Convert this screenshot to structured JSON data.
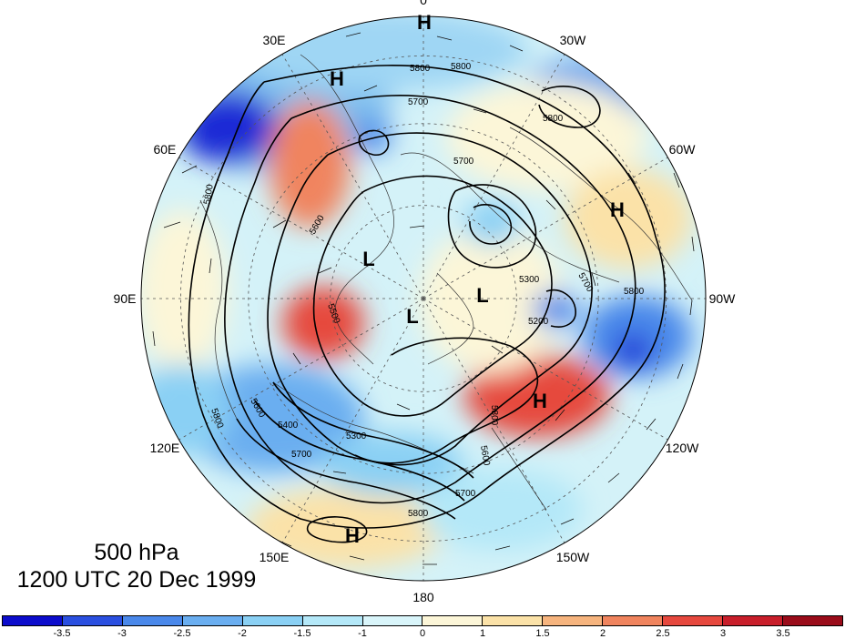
{
  "caption": {
    "level": "500 hPa",
    "time": "1200 UTC 20 Dec 1999"
  },
  "longitude_labels": [
    {
      "lon": 0,
      "label": "0"
    },
    {
      "lon": 30,
      "label": "30W"
    },
    {
      "lon": 60,
      "label": "60W"
    },
    {
      "lon": 90,
      "label": "90W"
    },
    {
      "lon": 120,
      "label": "120W"
    },
    {
      "lon": 150,
      "label": "150W"
    },
    {
      "lon": 180,
      "label": "180"
    },
    {
      "lon": 210,
      "label": "150E"
    },
    {
      "lon": 240,
      "label": "120E"
    },
    {
      "lon": 270,
      "label": "90E"
    },
    {
      "lon": 300,
      "label": "60E"
    },
    {
      "lon": 330,
      "label": "30E"
    }
  ],
  "pressure_centers": [
    {
      "type": "H",
      "label": "H"
    },
    {
      "type": "H",
      "label": "H"
    },
    {
      "type": "H",
      "label": "H"
    },
    {
      "type": "H",
      "label": "H"
    },
    {
      "type": "H",
      "label": "H"
    },
    {
      "type": "L",
      "label": "L"
    },
    {
      "type": "L",
      "label": "L"
    },
    {
      "type": "L",
      "label": "L"
    }
  ],
  "contour_labels": [
    "5800",
    "5800",
    "5800",
    "5800",
    "5800",
    "5800",
    "5800",
    "5800",
    "5700",
    "5700",
    "5700",
    "5700",
    "5700",
    "5600",
    "5600",
    "5600",
    "5500",
    "5400",
    "5300",
    "5300",
    "5200"
  ],
  "colorbar": {
    "colors": [
      "#0c0ccc",
      "#2a4fe0",
      "#4a88ea",
      "#6aaef0",
      "#8ad0f4",
      "#b4e8f8",
      "#d9f5fa",
      "#fcf6d8",
      "#fbe2a8",
      "#f6b47e",
      "#f0845e",
      "#e6483e",
      "#c81e2a",
      "#9a0c1a"
    ],
    "ticks": [
      "-3.5",
      "-3",
      "-2.5",
      "-2",
      "-1.5",
      "-1",
      "0",
      "1",
      "1.5",
      "2",
      "2.5",
      "3",
      "3.5"
    ]
  }
}
